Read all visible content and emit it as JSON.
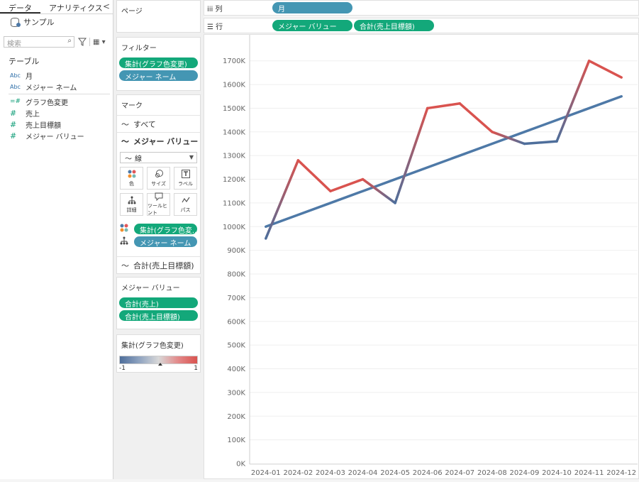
{
  "data_pane": {
    "tabs": [
      "データ",
      "アナリティクス"
    ],
    "collapse": "<",
    "source": "サンプル",
    "search_placeholder": "検索",
    "table_header": "テーブル",
    "fields": [
      {
        "type": "Abc",
        "name": "月"
      },
      {
        "type": "Abc",
        "name": "メジャー ネーム"
      },
      {
        "type": "=#",
        "name": "グラフ色変更"
      },
      {
        "type": "#",
        "name": "売上"
      },
      {
        "type": "#",
        "name": "売上目標額"
      },
      {
        "type": "#",
        "name": "メジャー バリュー"
      }
    ]
  },
  "cards": {
    "pages_title": "ページ",
    "filters_title": "フィルター",
    "filters": [
      "集計(グラフ色変更)",
      "メジャー ネーム"
    ],
    "marks_title": "マーク",
    "marks_all": "すべて",
    "marks_measure_values": "メジャー バリュー",
    "mark_type": "線",
    "mark_buttons": [
      "色",
      "サイズ",
      "ラベル",
      "詳細",
      "ツールヒント",
      "パス"
    ],
    "encodings": [
      "集計(グラフ色変..",
      "メジャー ネーム"
    ],
    "marks_target": "合計(売上目標額)",
    "measure_values_title": "メジャー バリュー",
    "measure_values": [
      "合計(売上)",
      "合計(売上目標額)"
    ],
    "legend_title": "集計(グラフ色変更)",
    "legend_min": "-1",
    "legend_max": "1"
  },
  "shelves": {
    "columns_label": "列",
    "columns_pill": "月",
    "rows_label": "行",
    "rows_pills": [
      "メジャー バリュー",
      "合計(売上目標額)"
    ]
  },
  "chart_data": {
    "type": "line",
    "categories": [
      "2024-01",
      "2024-02",
      "2024-03",
      "2024-04",
      "2024-05",
      "2024-06",
      "2024-07",
      "2024-08",
      "2024-09",
      "2024-10",
      "2024-11",
      "2024-12"
    ],
    "series": [
      {
        "values": [
          950,
          1280,
          1150,
          1200,
          1100,
          1500,
          1520,
          1400,
          1350,
          1360,
          1700,
          1630
        ],
        "color_gradient": [
          "#4e6e9b",
          "#d9534f"
        ]
      },
      {
        "values": [
          1000,
          1050,
          1100,
          1150,
          1200,
          1250,
          1300,
          1350,
          1400,
          1450,
          1500,
          1550
        ],
        "color": "#4e79a7"
      }
    ],
    "y_ticks": [
      "0K",
      "100K",
      "200K",
      "300K",
      "400K",
      "500K",
      "600K",
      "700K",
      "800K",
      "900K",
      "1000K",
      "1100K",
      "1200K",
      "1300K",
      "1400K",
      "1500K",
      "1600K",
      "1700K"
    ],
    "ylim": [
      0,
      1780
    ],
    "y_unit": "K",
    "grid": true
  }
}
